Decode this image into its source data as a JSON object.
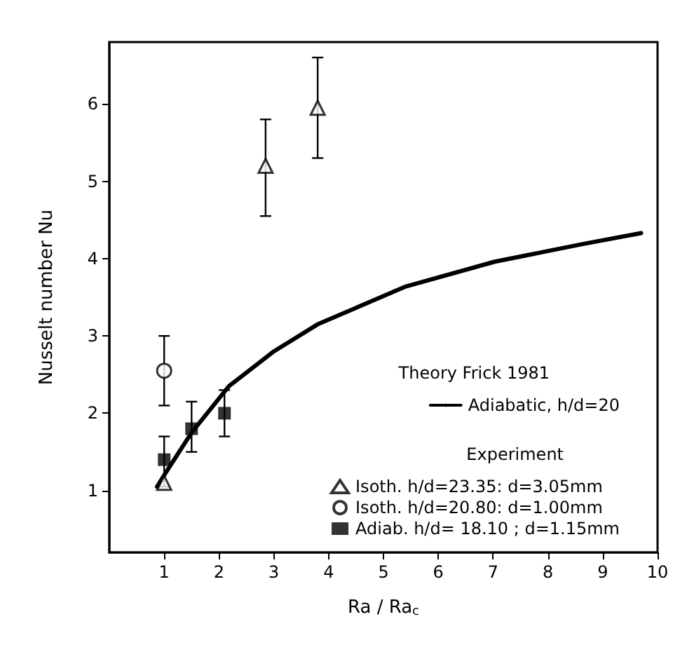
{
  "chart_data": {
    "type": "scatter",
    "xlabel": "Ra / Ra$_{c}$",
    "ylabel": "Nusselt number Nu",
    "xlim": [
      0,
      10
    ],
    "ylim": [
      0.2,
      6.8
    ],
    "xticks": [
      1,
      2,
      3,
      4,
      5,
      6,
      7,
      8,
      9,
      10
    ],
    "yticks": [
      1,
      2,
      3,
      4,
      5,
      6
    ],
    "grid": false,
    "legend": "bottom right",
    "annotations": [
      "Theory Frick 1981",
      "Experiment"
    ],
    "series": [
      {
        "name": "Adiabatic, h/d=20",
        "type": "line",
        "color": "#000000",
        "marker": "none",
        "line_style": "solid",
        "x": [
          0.87,
          1,
          1.5,
          2.18,
          3,
          3.8,
          5.41,
          7.03,
          8.65,
          9.7
        ],
        "values": [
          1.05,
          1.2,
          1.75,
          2.35,
          2.8,
          3.15,
          3.64,
          3.96,
          4.19,
          4.33
        ]
      },
      {
        "name": "Isoth. h/d=23.35: d=3.05mm",
        "type": "scatter",
        "color": "#000000",
        "marker": "triangle",
        "x": [
          1,
          2.85,
          3.8
        ],
        "values": [
          1.1,
          5.2,
          5.95
        ],
        "errors": [
          null,
          [
            4.55,
            5.8
          ],
          [
            5.3,
            6.6
          ]
        ]
      },
      {
        "name": "Isoth. h/d=20.80: d=1.00mm",
        "type": "scatter",
        "color": "#000000",
        "marker": "circle",
        "x": [
          1
        ],
        "values": [
          2.55
        ],
        "errors": [
          [
            2.1,
            3.0
          ]
        ]
      },
      {
        "name": "Adiab. h/d= 18.10 ; d=1.15mm",
        "type": "scatter",
        "color": "#000000",
        "marker": "square",
        "x": [
          1,
          1.5,
          2.1
        ],
        "values": [
          1.4,
          1.8,
          2.0
        ],
        "errors": [
          [
            1.05,
            1.7
          ],
          [
            1.5,
            2.15
          ],
          [
            1.7,
            2.3
          ]
        ]
      }
    ]
  }
}
